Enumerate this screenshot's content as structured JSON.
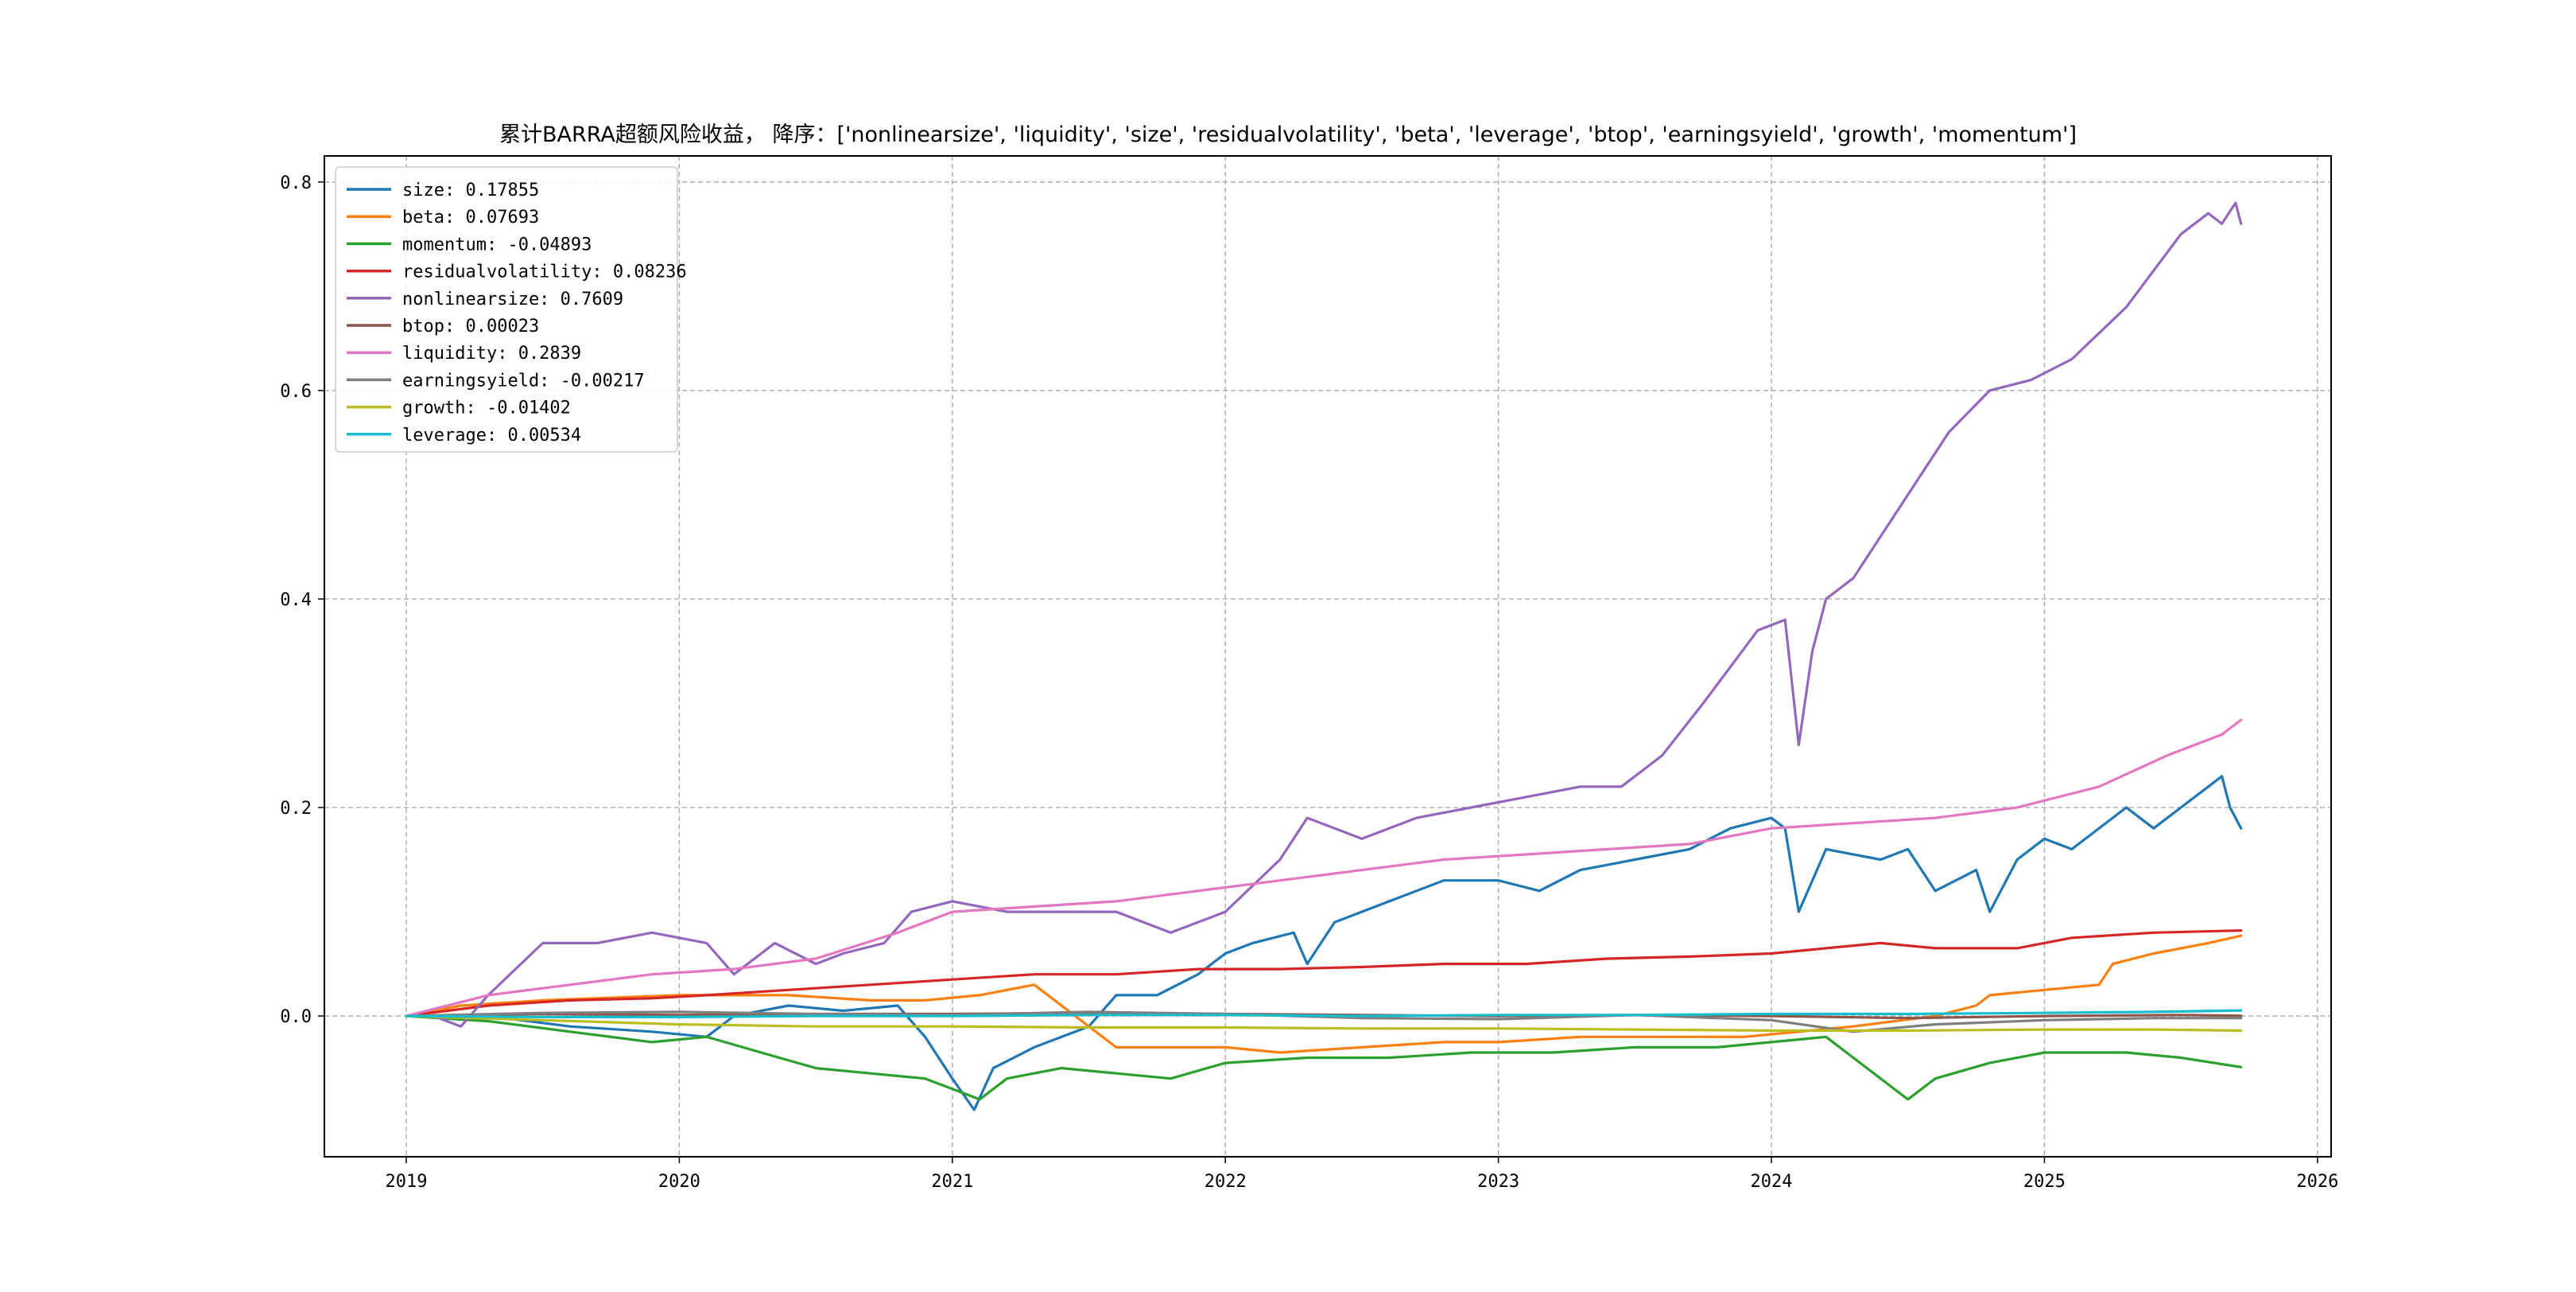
{
  "chart_data": {
    "type": "line",
    "title": "累计BARRA超额风险收益，  降序：['nonlinearsize', 'liquidity', 'size', 'residualvolatility', 'beta', 'leverage', 'btop', 'earningsyield', 'growth', 'momentum']",
    "xlabel": "",
    "ylabel": "",
    "xlim": [
      2018.7,
      2026.05
    ],
    "ylim": [
      -0.135,
      0.825
    ],
    "x_ticks": [
      2019,
      2020,
      2021,
      2022,
      2023,
      2024,
      2025,
      2026
    ],
    "x_tick_labels": [
      "2019",
      "2020",
      "2021",
      "2022",
      "2023",
      "2024",
      "2025",
      "2026"
    ],
    "y_ticks": [
      0.0,
      0.2,
      0.4,
      0.6,
      0.8
    ],
    "y_tick_labels": [
      "0.0",
      "0.2",
      "0.4",
      "0.6",
      "0.8"
    ],
    "grid": true,
    "legend_position": "top-left",
    "series": [
      {
        "name": "size",
        "legend": "size: 0.17855",
        "color": "#1f77b4",
        "points": [
          [
            2019.0,
            0.0
          ],
          [
            2019.3,
            0.0
          ],
          [
            2019.6,
            -0.01
          ],
          [
            2019.9,
            -0.015
          ],
          [
            2020.1,
            -0.02
          ],
          [
            2020.2,
            0.0
          ],
          [
            2020.4,
            0.01
          ],
          [
            2020.6,
            0.005
          ],
          [
            2020.8,
            0.01
          ],
          [
            2020.9,
            -0.02
          ],
          [
            2021.0,
            -0.06
          ],
          [
            2021.08,
            -0.09
          ],
          [
            2021.15,
            -0.05
          ],
          [
            2021.3,
            -0.03
          ],
          [
            2021.5,
            -0.01
          ],
          [
            2021.6,
            0.02
          ],
          [
            2021.75,
            0.02
          ],
          [
            2021.9,
            0.04
          ],
          [
            2022.0,
            0.06
          ],
          [
            2022.1,
            0.07
          ],
          [
            2022.25,
            0.08
          ],
          [
            2022.3,
            0.05
          ],
          [
            2022.4,
            0.09
          ],
          [
            2022.6,
            0.11
          ],
          [
            2022.8,
            0.13
          ],
          [
            2023.0,
            0.13
          ],
          [
            2023.15,
            0.12
          ],
          [
            2023.3,
            0.14
          ],
          [
            2023.5,
            0.15
          ],
          [
            2023.7,
            0.16
          ],
          [
            2023.85,
            0.18
          ],
          [
            2024.0,
            0.19
          ],
          [
            2024.05,
            0.18
          ],
          [
            2024.1,
            0.1
          ],
          [
            2024.2,
            0.16
          ],
          [
            2024.4,
            0.15
          ],
          [
            2024.5,
            0.16
          ],
          [
            2024.6,
            0.12
          ],
          [
            2024.75,
            0.14
          ],
          [
            2024.8,
            0.1
          ],
          [
            2024.9,
            0.15
          ],
          [
            2025.0,
            0.17
          ],
          [
            2025.1,
            0.16
          ],
          [
            2025.3,
            0.2
          ],
          [
            2025.4,
            0.18
          ],
          [
            2025.5,
            0.2
          ],
          [
            2025.6,
            0.22
          ],
          [
            2025.65,
            0.23
          ],
          [
            2025.68,
            0.2
          ],
          [
            2025.72,
            0.18
          ]
        ]
      },
      {
        "name": "beta",
        "legend": "beta: 0.07693",
        "color": "#ff7f0e",
        "points": [
          [
            2019.0,
            0.0
          ],
          [
            2019.2,
            0.01
          ],
          [
            2019.5,
            0.015
          ],
          [
            2019.8,
            0.018
          ],
          [
            2020.0,
            0.02
          ],
          [
            2020.2,
            0.02
          ],
          [
            2020.4,
            0.02
          ],
          [
            2020.7,
            0.015
          ],
          [
            2020.9,
            0.015
          ],
          [
            2021.1,
            0.02
          ],
          [
            2021.3,
            0.03
          ],
          [
            2021.45,
            0.0
          ],
          [
            2021.6,
            -0.03
          ],
          [
            2021.8,
            -0.03
          ],
          [
            2022.0,
            -0.03
          ],
          [
            2022.2,
            -0.035
          ],
          [
            2022.5,
            -0.03
          ],
          [
            2022.8,
            -0.025
          ],
          [
            2023.0,
            -0.025
          ],
          [
            2023.3,
            -0.02
          ],
          [
            2023.6,
            -0.02
          ],
          [
            2023.9,
            -0.02
          ],
          [
            2024.1,
            -0.015
          ],
          [
            2024.3,
            -0.01
          ],
          [
            2024.6,
            0.0
          ],
          [
            2024.75,
            0.01
          ],
          [
            2024.8,
            0.02
          ],
          [
            2025.0,
            0.025
          ],
          [
            2025.2,
            0.03
          ],
          [
            2025.25,
            0.05
          ],
          [
            2025.4,
            0.06
          ],
          [
            2025.6,
            0.07
          ],
          [
            2025.72,
            0.077
          ]
        ]
      },
      {
        "name": "momentum",
        "legend": "momentum: -0.04893",
        "color": "#2ca02c",
        "points": [
          [
            2019.0,
            0.0
          ],
          [
            2019.3,
            -0.005
          ],
          [
            2019.6,
            -0.015
          ],
          [
            2019.9,
            -0.025
          ],
          [
            2020.1,
            -0.02
          ],
          [
            2020.3,
            -0.035
          ],
          [
            2020.5,
            -0.05
          ],
          [
            2020.7,
            -0.055
          ],
          [
            2020.9,
            -0.06
          ],
          [
            2021.0,
            -0.07
          ],
          [
            2021.1,
            -0.08
          ],
          [
            2021.2,
            -0.06
          ],
          [
            2021.4,
            -0.05
          ],
          [
            2021.6,
            -0.055
          ],
          [
            2021.8,
            -0.06
          ],
          [
            2022.0,
            -0.045
          ],
          [
            2022.3,
            -0.04
          ],
          [
            2022.6,
            -0.04
          ],
          [
            2022.9,
            -0.035
          ],
          [
            2023.2,
            -0.035
          ],
          [
            2023.5,
            -0.03
          ],
          [
            2023.8,
            -0.03
          ],
          [
            2024.0,
            -0.025
          ],
          [
            2024.2,
            -0.02
          ],
          [
            2024.35,
            -0.05
          ],
          [
            2024.5,
            -0.08
          ],
          [
            2024.6,
            -0.06
          ],
          [
            2024.8,
            -0.045
          ],
          [
            2025.0,
            -0.035
          ],
          [
            2025.3,
            -0.035
          ],
          [
            2025.5,
            -0.04
          ],
          [
            2025.72,
            -0.049
          ]
        ]
      },
      {
        "name": "residualvolatility",
        "legend": "residualvolatility: 0.08236",
        "color": "#d62728",
        "points": [
          [
            2019.0,
            0.0
          ],
          [
            2019.3,
            0.01
          ],
          [
            2019.6,
            0.015
          ],
          [
            2019.9,
            0.017
          ],
          [
            2020.1,
            0.02
          ],
          [
            2020.4,
            0.025
          ],
          [
            2020.7,
            0.03
          ],
          [
            2021.0,
            0.035
          ],
          [
            2021.3,
            0.04
          ],
          [
            2021.6,
            0.04
          ],
          [
            2021.9,
            0.045
          ],
          [
            2022.2,
            0.045
          ],
          [
            2022.5,
            0.047
          ],
          [
            2022.8,
            0.05
          ],
          [
            2023.1,
            0.05
          ],
          [
            2023.4,
            0.055
          ],
          [
            2023.7,
            0.057
          ],
          [
            2024.0,
            0.06
          ],
          [
            2024.2,
            0.065
          ],
          [
            2024.4,
            0.07
          ],
          [
            2024.6,
            0.065
          ],
          [
            2024.9,
            0.065
          ],
          [
            2025.1,
            0.075
          ],
          [
            2025.4,
            0.08
          ],
          [
            2025.72,
            0.082
          ]
        ]
      },
      {
        "name": "nonlinearsize",
        "legend": "nonlinearsize: 0.7609",
        "color": "#9467bd",
        "points": [
          [
            2019.0,
            0.0
          ],
          [
            2019.1,
            0.0
          ],
          [
            2019.2,
            -0.01
          ],
          [
            2019.3,
            0.02
          ],
          [
            2019.5,
            0.07
          ],
          [
            2019.7,
            0.07
          ],
          [
            2019.9,
            0.08
          ],
          [
            2020.1,
            0.07
          ],
          [
            2020.2,
            0.04
          ],
          [
            2020.35,
            0.07
          ],
          [
            2020.5,
            0.05
          ],
          [
            2020.6,
            0.06
          ],
          [
            2020.75,
            0.07
          ],
          [
            2020.85,
            0.1
          ],
          [
            2021.0,
            0.11
          ],
          [
            2021.2,
            0.1
          ],
          [
            2021.4,
            0.1
          ],
          [
            2021.6,
            0.1
          ],
          [
            2021.8,
            0.08
          ],
          [
            2022.0,
            0.1
          ],
          [
            2022.2,
            0.15
          ],
          [
            2022.3,
            0.19
          ],
          [
            2022.5,
            0.17
          ],
          [
            2022.7,
            0.19
          ],
          [
            2022.9,
            0.2
          ],
          [
            2023.1,
            0.21
          ],
          [
            2023.3,
            0.22
          ],
          [
            2023.45,
            0.22
          ],
          [
            2023.6,
            0.25
          ],
          [
            2023.75,
            0.3
          ],
          [
            2023.95,
            0.37
          ],
          [
            2024.05,
            0.38
          ],
          [
            2024.1,
            0.26
          ],
          [
            2024.15,
            0.35
          ],
          [
            2024.2,
            0.4
          ],
          [
            2024.3,
            0.42
          ],
          [
            2024.5,
            0.5
          ],
          [
            2024.65,
            0.56
          ],
          [
            2024.8,
            0.6
          ],
          [
            2024.95,
            0.61
          ],
          [
            2025.1,
            0.63
          ],
          [
            2025.3,
            0.68
          ],
          [
            2025.5,
            0.75
          ],
          [
            2025.6,
            0.77
          ],
          [
            2025.65,
            0.76
          ],
          [
            2025.7,
            0.78
          ],
          [
            2025.72,
            0.76
          ]
        ]
      },
      {
        "name": "btop",
        "legend": "btop: 0.00023",
        "color": "#8c564b",
        "points": [
          [
            2019.0,
            0.0
          ],
          [
            2019.5,
            0.002
          ],
          [
            2020.0,
            0.001
          ],
          [
            2020.5,
            0.002
          ],
          [
            2021.0,
            0.002
          ],
          [
            2021.5,
            0.003
          ],
          [
            2022.0,
            0.002
          ],
          [
            2022.5,
            0.001
          ],
          [
            2023.0,
            0.0
          ],
          [
            2023.5,
            0.001
          ],
          [
            2024.0,
            0.0
          ],
          [
            2024.5,
            -0.002
          ],
          [
            2025.0,
            0.0
          ],
          [
            2025.5,
            0.001
          ],
          [
            2025.72,
            0.0002
          ]
        ]
      },
      {
        "name": "liquidity",
        "legend": "liquidity: 0.2839",
        "color": "#e377c2",
        "points": [
          [
            2019.0,
            0.0
          ],
          [
            2019.3,
            0.02
          ],
          [
            2019.6,
            0.03
          ],
          [
            2019.9,
            0.04
          ],
          [
            2020.2,
            0.045
          ],
          [
            2020.5,
            0.055
          ],
          [
            2020.8,
            0.08
          ],
          [
            2021.0,
            0.1
          ],
          [
            2021.3,
            0.105
          ],
          [
            2021.6,
            0.11
          ],
          [
            2021.9,
            0.12
          ],
          [
            2022.2,
            0.13
          ],
          [
            2022.5,
            0.14
          ],
          [
            2022.8,
            0.15
          ],
          [
            2023.1,
            0.155
          ],
          [
            2023.4,
            0.16
          ],
          [
            2023.7,
            0.165
          ],
          [
            2024.0,
            0.18
          ],
          [
            2024.3,
            0.185
          ],
          [
            2024.6,
            0.19
          ],
          [
            2024.9,
            0.2
          ],
          [
            2025.2,
            0.22
          ],
          [
            2025.45,
            0.25
          ],
          [
            2025.65,
            0.27
          ],
          [
            2025.72,
            0.284
          ]
        ]
      },
      {
        "name": "earningsyield",
        "legend": "earningsyield: -0.00217",
        "color": "#7f7f7f",
        "points": [
          [
            2019.0,
            0.0
          ],
          [
            2019.5,
            0.003
          ],
          [
            2020.0,
            0.004
          ],
          [
            2020.5,
            0.002
          ],
          [
            2021.0,
            0.001
          ],
          [
            2021.5,
            0.004
          ],
          [
            2022.0,
            0.002
          ],
          [
            2022.5,
            -0.002
          ],
          [
            2023.0,
            -0.003
          ],
          [
            2023.5,
            0.001
          ],
          [
            2024.0,
            -0.004
          ],
          [
            2024.3,
            -0.015
          ],
          [
            2024.6,
            -0.008
          ],
          [
            2025.0,
            -0.004
          ],
          [
            2025.4,
            -0.002
          ],
          [
            2025.72,
            -0.002
          ]
        ]
      },
      {
        "name": "growth",
        "legend": "growth: -0.01402",
        "color": "#bcbd22",
        "points": [
          [
            2019.0,
            0.0
          ],
          [
            2019.5,
            -0.004
          ],
          [
            2020.0,
            -0.008
          ],
          [
            2020.5,
            -0.01
          ],
          [
            2021.0,
            -0.01
          ],
          [
            2021.5,
            -0.011
          ],
          [
            2022.0,
            -0.011
          ],
          [
            2022.5,
            -0.012
          ],
          [
            2023.0,
            -0.012
          ],
          [
            2023.5,
            -0.013
          ],
          [
            2024.0,
            -0.014
          ],
          [
            2024.5,
            -0.014
          ],
          [
            2025.0,
            -0.013
          ],
          [
            2025.4,
            -0.013
          ],
          [
            2025.72,
            -0.014
          ]
        ]
      },
      {
        "name": "leverage",
        "legend": "leverage: 0.00534",
        "color": "#17becf",
        "points": [
          [
            2019.0,
            0.0
          ],
          [
            2019.5,
            -0.001
          ],
          [
            2020.0,
            -0.001
          ],
          [
            2020.5,
            0.0
          ],
          [
            2021.0,
            0.0
          ],
          [
            2021.5,
            0.001
          ],
          [
            2022.0,
            0.001
          ],
          [
            2022.5,
            0.0
          ],
          [
            2023.0,
            0.001
          ],
          [
            2023.5,
            0.001
          ],
          [
            2024.0,
            0.002
          ],
          [
            2024.5,
            0.002
          ],
          [
            2025.0,
            0.003
          ],
          [
            2025.4,
            0.004
          ],
          [
            2025.72,
            0.0053
          ]
        ]
      }
    ]
  }
}
